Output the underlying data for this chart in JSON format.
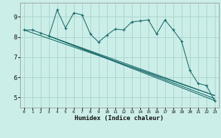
{
  "xlabel": "Humidex (Indice chaleur)",
  "bg_color": "#cceee8",
  "grid_color": "#aad4ce",
  "line_color": "#1a6b6b",
  "x_ticks": [
    0,
    1,
    2,
    3,
    4,
    5,
    6,
    7,
    8,
    9,
    10,
    11,
    12,
    13,
    14,
    15,
    16,
    17,
    18,
    19,
    20,
    21,
    22,
    23
  ],
  "y_ticks": [
    5,
    6,
    7,
    8,
    9
  ],
  "ylim": [
    4.5,
    9.7
  ],
  "xlim": [
    -0.5,
    23.5
  ],
  "main_series": [
    8.35,
    8.35,
    8.2,
    8.05,
    9.35,
    8.45,
    9.2,
    9.1,
    8.15,
    7.75,
    8.1,
    8.4,
    8.35,
    8.75,
    8.8,
    8.85,
    8.15,
    8.85,
    8.35,
    7.8,
    6.35,
    5.7,
    5.6,
    4.85
  ],
  "trend_lines": [
    [
      [
        3,
        23
      ],
      [
        8.05,
        4.85
      ]
    ],
    [
      [
        3,
        23
      ],
      [
        8.05,
        4.95
      ]
    ],
    [
      [
        3,
        23
      ],
      [
        8.05,
        5.1
      ]
    ],
    [
      [
        0,
        23
      ],
      [
        8.35,
        5.1
      ]
    ]
  ]
}
